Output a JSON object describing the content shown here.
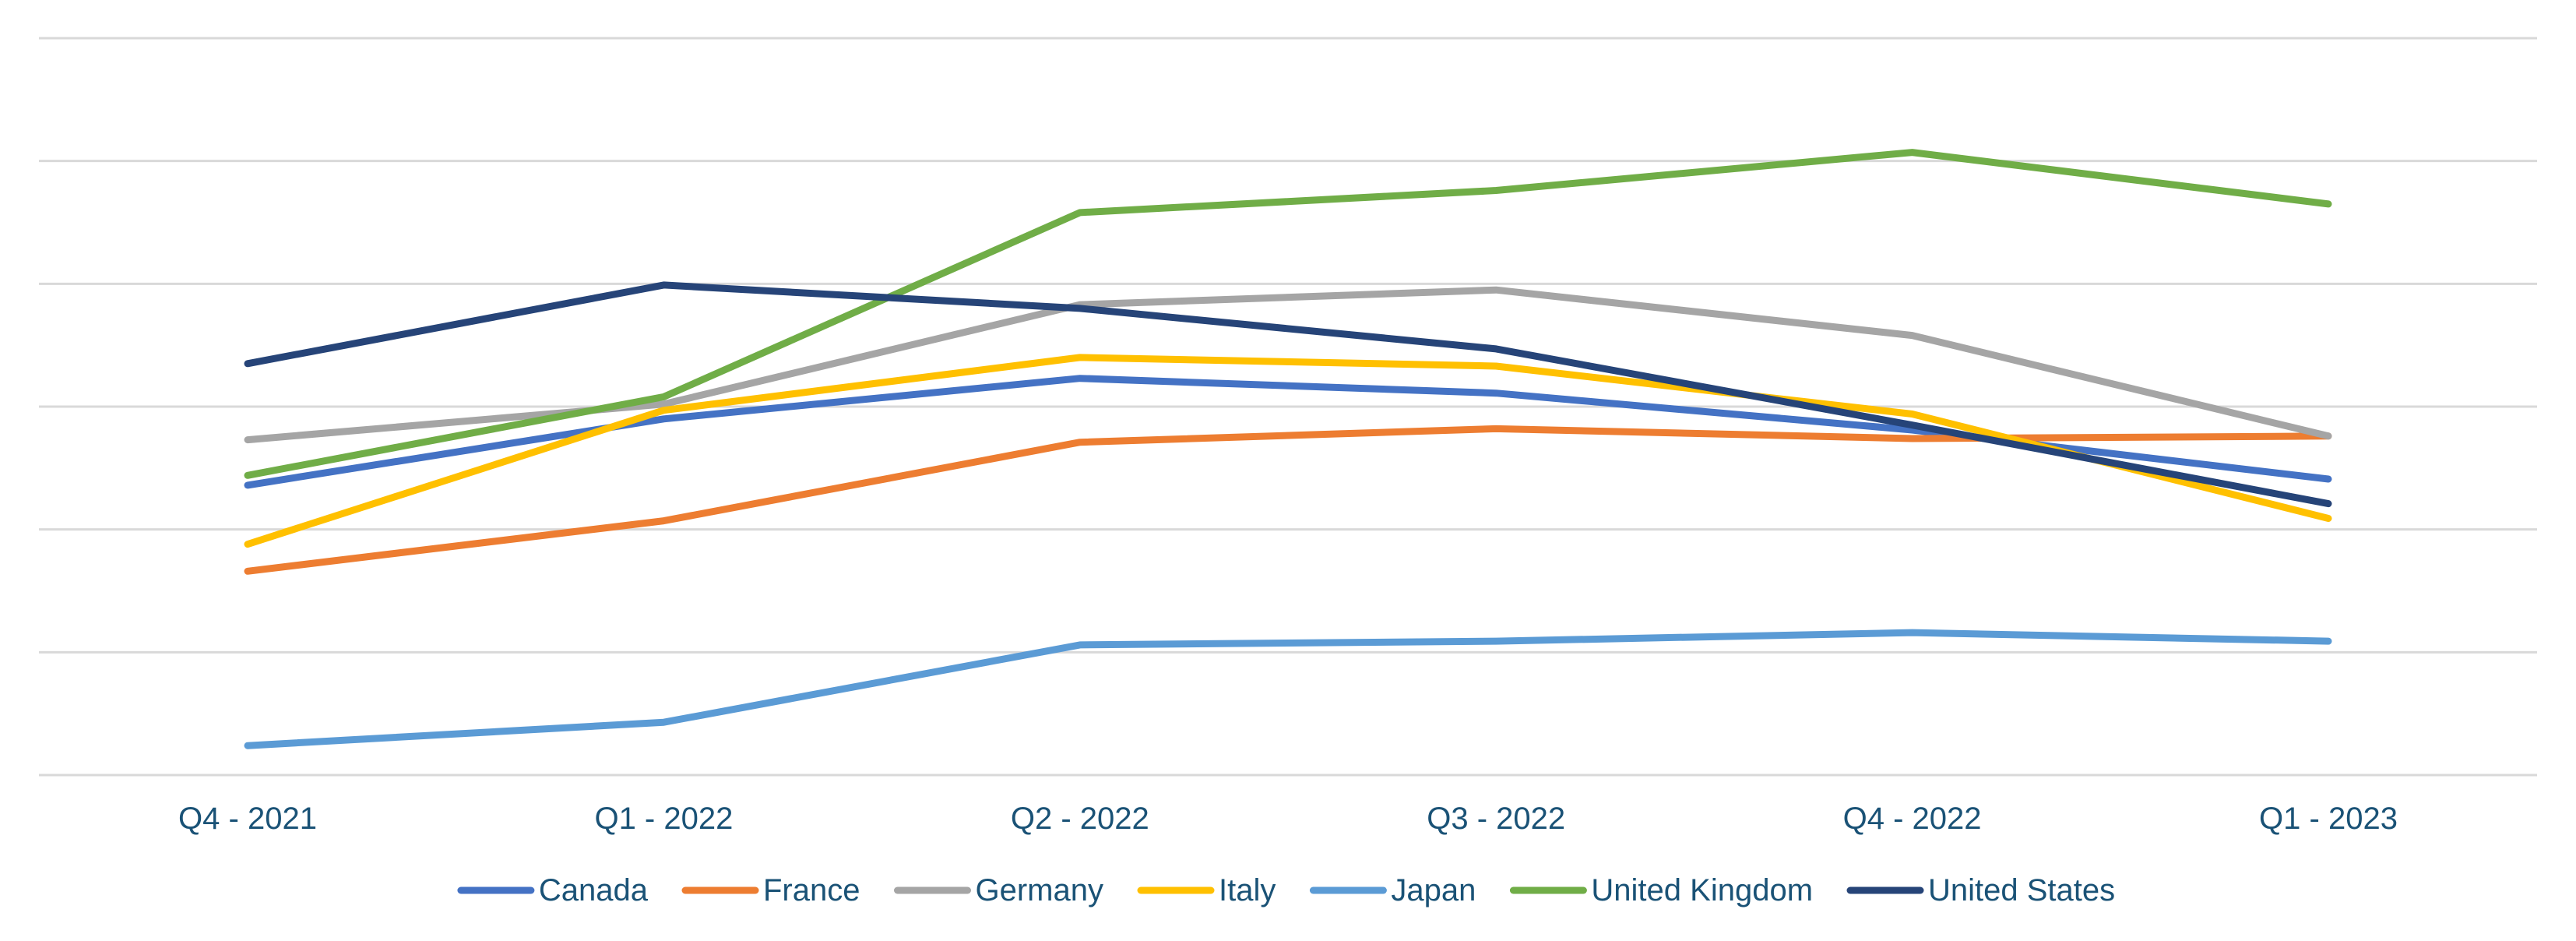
{
  "chart_data": {
    "type": "line",
    "title": "",
    "xlabel": "",
    "ylabel": "",
    "categories": [
      "Q4 - 2021",
      "Q1 - 2022",
      "Q2 - 2022",
      "Q3 - 2022",
      "Q4 - 2022",
      "Q1 - 2023"
    ],
    "ylim": [
      0,
      60
    ],
    "gridlines": [
      0,
      10,
      20,
      30,
      40,
      50,
      60
    ],
    "grid": true,
    "legend_position": "bottom",
    "series": [
      {
        "name": "Canada",
        "color": "#4472c4",
        "values": [
          23.6,
          29.0,
          32.3,
          31.1,
          28.1,
          24.1
        ]
      },
      {
        "name": "France",
        "color": "#ed7d31",
        "values": [
          16.6,
          20.7,
          27.1,
          28.2,
          27.4,
          27.6
        ]
      },
      {
        "name": "Germany",
        "color": "#a5a5a5",
        "values": [
          27.3,
          30.2,
          38.3,
          39.5,
          35.8,
          27.6
        ]
      },
      {
        "name": "Italy",
        "color": "#ffc000",
        "values": [
          18.8,
          29.7,
          34.0,
          33.3,
          29.4,
          20.9
        ]
      },
      {
        "name": "Japan",
        "color": "#5b9bd5",
        "values": [
          2.4,
          4.3,
          10.6,
          10.9,
          11.6,
          10.9
        ]
      },
      {
        "name": "United Kingdom",
        "color": "#70ad47",
        "values": [
          24.4,
          30.8,
          45.8,
          47.6,
          50.7,
          46.5
        ]
      },
      {
        "name": "United States",
        "color": "#264478",
        "values": [
          33.5,
          39.9,
          38.0,
          34.7,
          28.5,
          22.1
        ]
      }
    ]
  }
}
